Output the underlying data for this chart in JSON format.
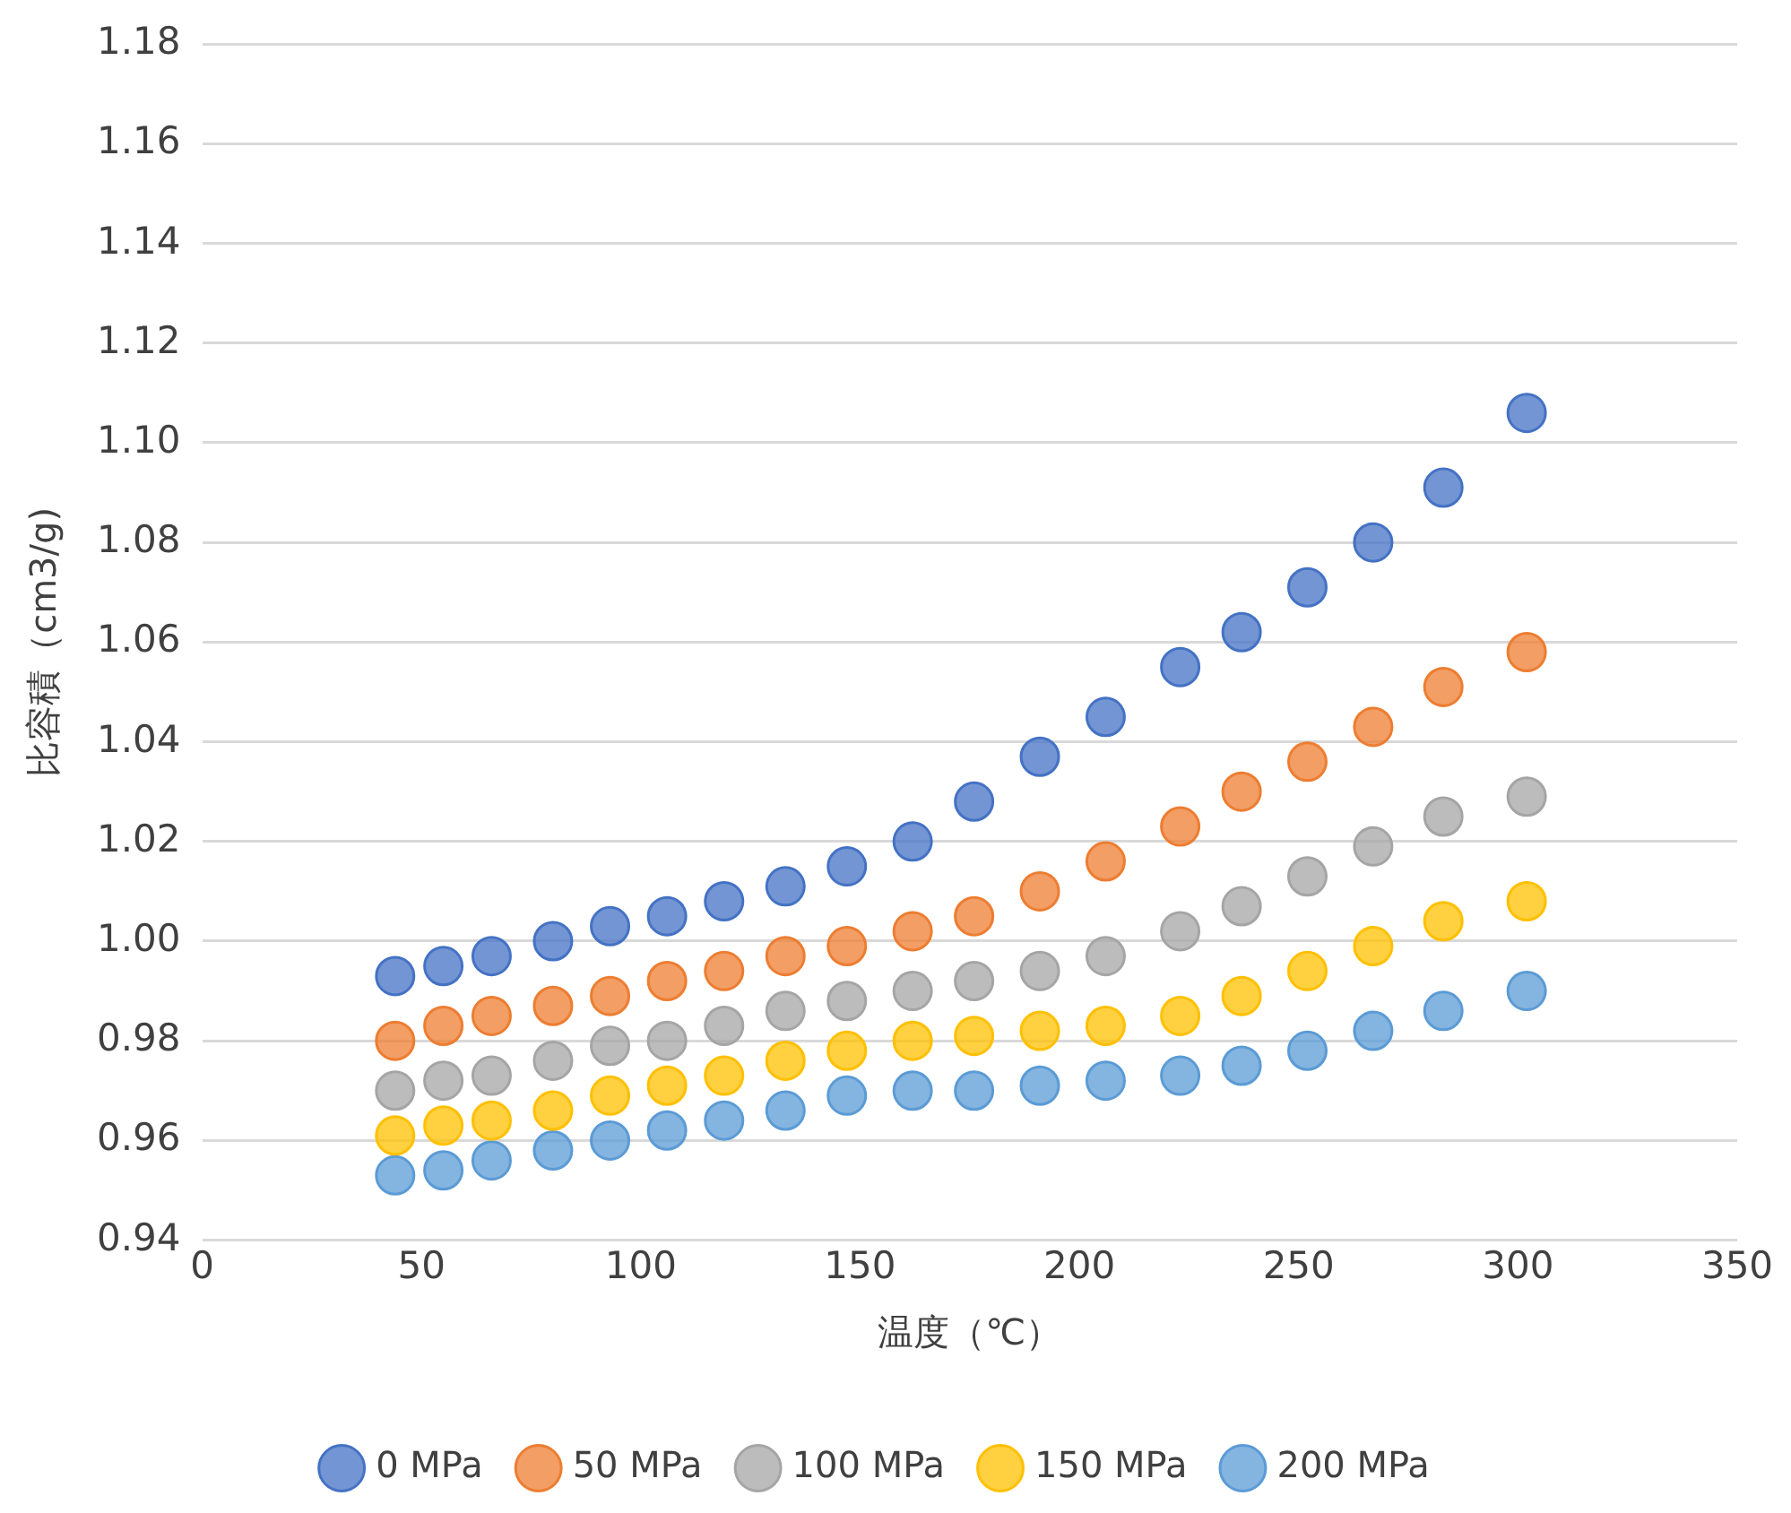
{
  "chart_data": {
    "type": "scatter",
    "xlabel": "温度（℃）",
    "ylabel": "比容積（cm3/g)",
    "x": [
      44,
      55,
      66,
      80,
      93,
      106,
      119,
      133,
      147,
      162,
      176,
      191,
      206,
      223,
      237,
      252,
      267,
      283,
      302
    ],
    "series": [
      {
        "name": "0 MPa",
        "color": "#4472c4",
        "values": [
          0.993,
          0.995,
          0.997,
          1.0,
          1.003,
          1.005,
          1.008,
          1.011,
          1.015,
          1.02,
          1.028,
          1.037,
          1.045,
          1.055,
          1.062,
          1.071,
          1.08,
          1.091,
          1.106
        ]
      },
      {
        "name": "50 MPa",
        "color": "#ed7d31",
        "values": [
          0.98,
          0.983,
          0.985,
          0.987,
          0.989,
          0.992,
          0.994,
          0.997,
          0.999,
          1.002,
          1.005,
          1.01,
          1.016,
          1.023,
          1.03,
          1.036,
          1.043,
          1.051,
          1.058
        ]
      },
      {
        "name": "100 MPa",
        "color": "#a5a5a5",
        "values": [
          0.97,
          0.972,
          0.973,
          0.976,
          0.979,
          0.98,
          0.983,
          0.986,
          0.988,
          0.99,
          0.992,
          0.994,
          0.997,
          1.002,
          1.007,
          1.013,
          1.019,
          1.025,
          1.029
        ]
      },
      {
        "name": "150 MPa",
        "color": "#ffc000",
        "values": [
          0.961,
          0.963,
          0.964,
          0.966,
          0.969,
          0.971,
          0.973,
          0.976,
          0.978,
          0.98,
          0.981,
          0.982,
          0.983,
          0.985,
          0.989,
          0.994,
          0.999,
          1.004,
          1.008
        ]
      },
      {
        "name": "200 MPa",
        "color": "#5b9bd5",
        "values": [
          0.953,
          0.954,
          0.956,
          0.958,
          0.96,
          0.962,
          0.964,
          0.966,
          0.969,
          0.97,
          0.97,
          0.971,
          0.972,
          0.973,
          0.975,
          0.978,
          0.982,
          0.986,
          0.99
        ]
      }
    ],
    "xlim": [
      0,
      350
    ],
    "xticks": [
      0,
      50,
      100,
      150,
      200,
      250,
      300,
      350
    ],
    "ylim": [
      0.94,
      1.18
    ],
    "yticks": [
      {
        "value": 0.94,
        "label": "0.94"
      },
      {
        "value": 0.96,
        "label": "0.96"
      },
      {
        "value": 0.98,
        "label": "0.98"
      },
      {
        "value": 1.0,
        "label": "1.00"
      },
      {
        "value": 1.02,
        "label": "1.02"
      },
      {
        "value": 1.04,
        "label": "1.04"
      },
      {
        "value": 1.06,
        "label": "1.06"
      },
      {
        "value": 1.08,
        "label": "1.08"
      },
      {
        "value": 1.1,
        "label": "1.10"
      },
      {
        "value": 1.12,
        "label": "1.12"
      },
      {
        "value": 1.14,
        "label": "1.14"
      },
      {
        "value": 1.16,
        "label": "1.16"
      },
      {
        "value": 1.18,
        "label": "1.18"
      }
    ],
    "grid": "y",
    "legend": "bottom",
    "marker": "circle"
  }
}
